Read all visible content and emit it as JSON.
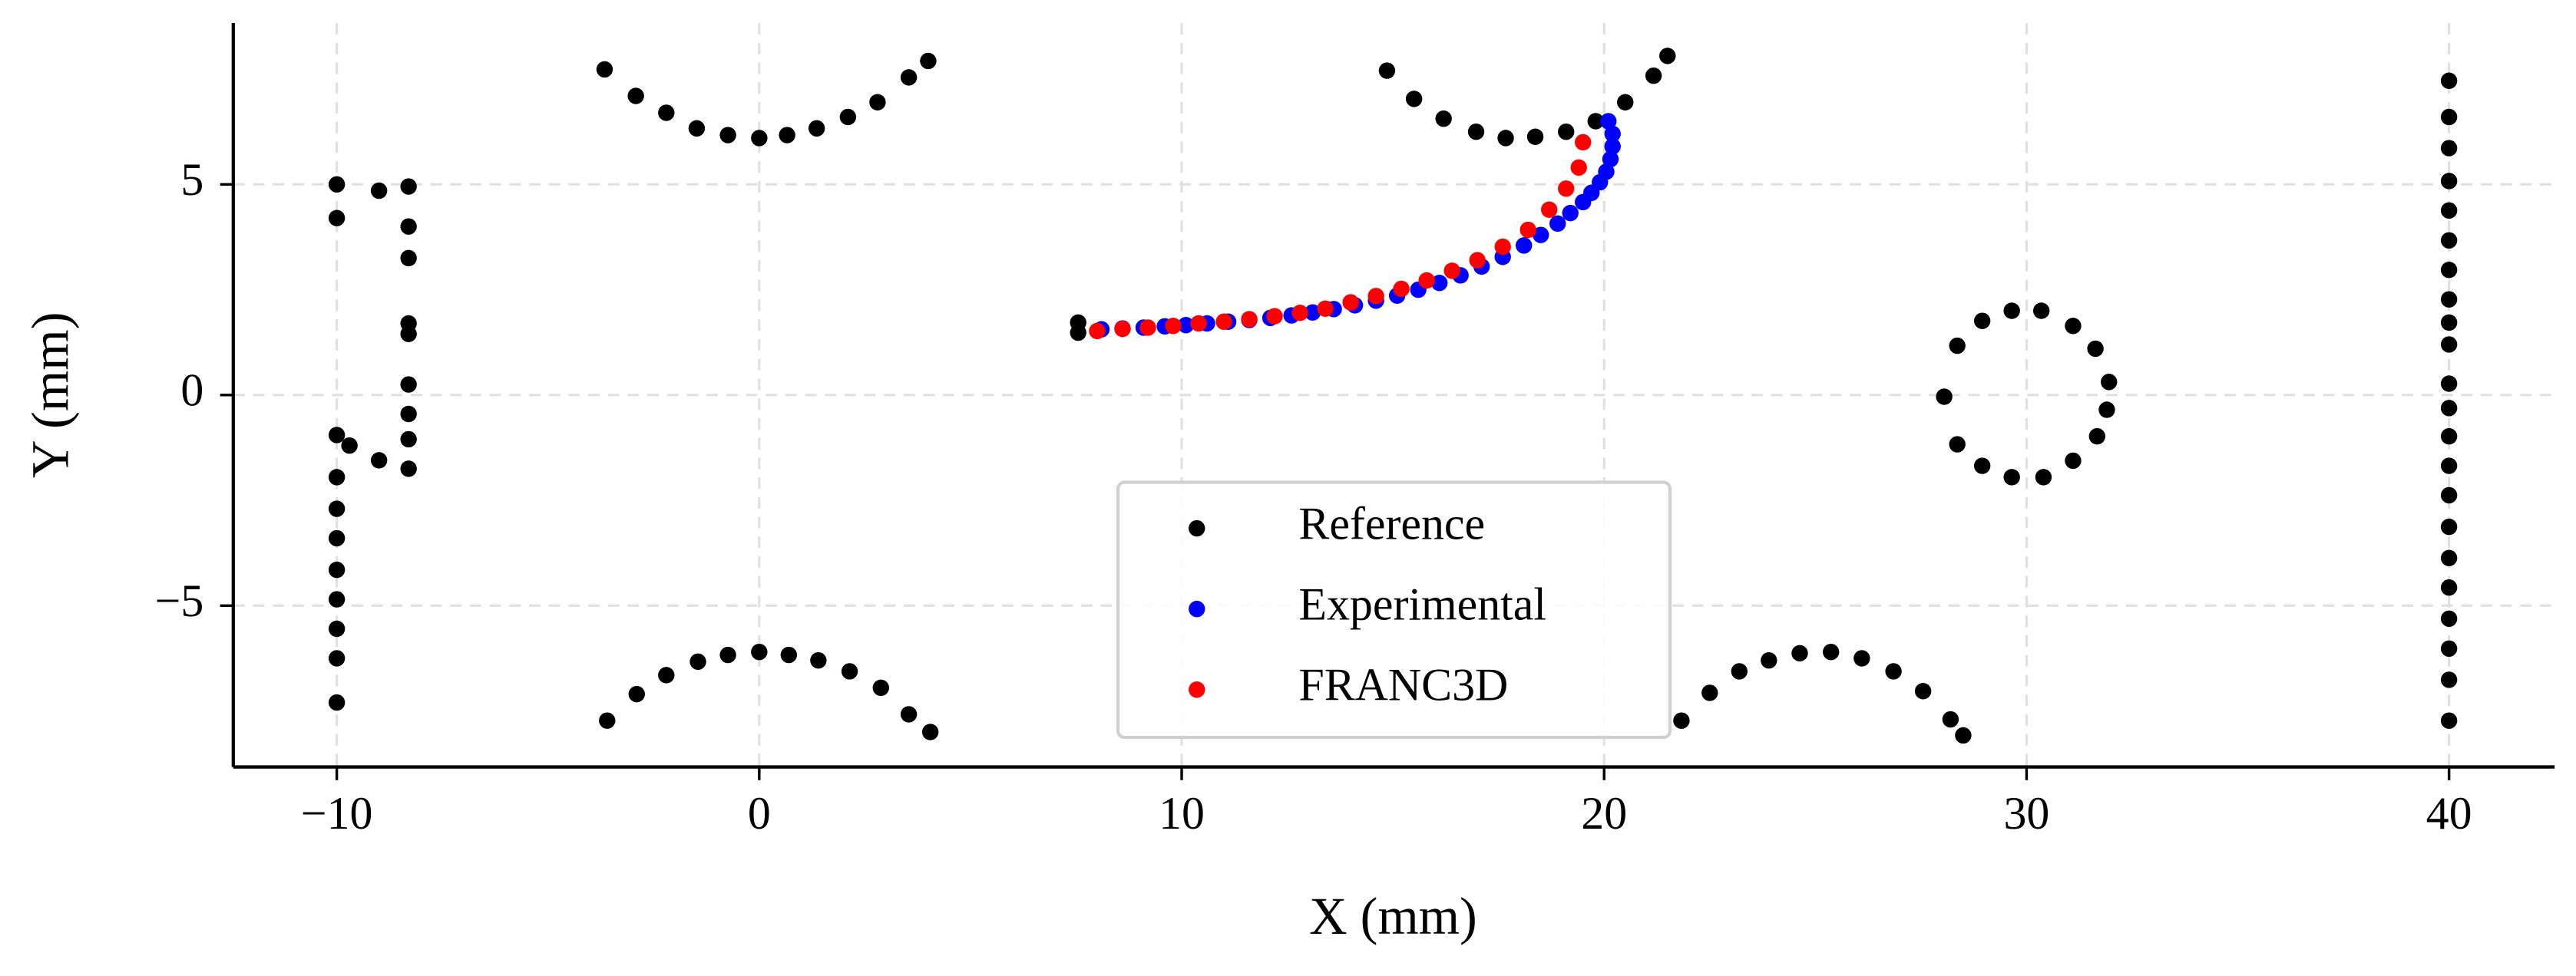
{
  "chart_data": {
    "type": "scatter",
    "xlabel": "X (mm)",
    "ylabel": "Y (mm)",
    "xlim": [
      -12.45,
      42.5
    ],
    "ylim": [
      -8.83,
      8.83
    ],
    "xticks": [
      {
        "value": -10,
        "label": "−10"
      },
      0,
      10,
      20,
      30,
      40
    ],
    "yticks": [
      {
        "value": -5,
        "label": "−5"
      },
      0,
      5
    ],
    "grid": true,
    "legend": "lower center",
    "series": [
      {
        "name": "Reference",
        "color": "#000000",
        "x": [
          -10,
          -10,
          -10,
          -10,
          -10,
          -10,
          -10,
          -10,
          -10,
          -10,
          -10,
          -9.7,
          -9,
          -9,
          -8.3,
          -8.3,
          -8.3,
          -8.3,
          -8.3,
          -8.3,
          -8.3,
          -8.3,
          -8.3,
          -3.66,
          -2.92,
          -2.2,
          -1.48,
          -0.74,
          0,
          0.66,
          1.36,
          2.1,
          2.8,
          3.54,
          4.0,
          -3.6,
          -2.9,
          -2.2,
          -1.45,
          -0.74,
          0,
          0.7,
          1.4,
          2.14,
          2.88,
          3.54,
          4.05,
          14.86,
          15.5,
          16.2,
          16.97,
          17.67,
          18.37,
          19.1,
          19.8,
          20.5,
          21.17,
          21.5,
          21.83,
          22.5,
          23.2,
          23.9,
          24.63,
          25.37,
          26.1,
          26.85,
          27.55,
          28.2,
          28.5,
          7.55,
          7.55,
          28.05,
          28.36,
          28.95,
          29.65,
          30.35,
          31.1,
          31.63,
          31.95,
          31.9,
          31.67,
          31.1,
          30.4,
          29.65,
          28.95,
          28.36,
          40,
          40,
          40,
          40,
          40,
          40,
          40,
          40,
          40,
          40,
          40,
          40,
          40,
          40,
          40,
          40,
          40,
          40,
          40,
          40,
          40,
          40
        ],
        "values": [
          5,
          4.2,
          -0.95,
          -1.95,
          -2.7,
          -3.4,
          -4.15,
          -4.85,
          -5.55,
          -6.25,
          -7.3,
          -1.2,
          4.85,
          -1.55,
          4.95,
          4.0,
          3.25,
          1.7,
          1.45,
          0.25,
          -0.45,
          -1.05,
          -1.75,
          7.73,
          7.1,
          6.7,
          6.33,
          6.17,
          6.1,
          6.17,
          6.33,
          6.6,
          6.95,
          7.54,
          7.93,
          -7.73,
          -7.1,
          -6.65,
          -6.33,
          -6.17,
          -6.1,
          -6.17,
          -6.3,
          -6.56,
          -6.95,
          -7.58,
          -8.0,
          7.7,
          7.03,
          6.56,
          6.25,
          6.1,
          6.13,
          6.25,
          6.5,
          6.95,
          7.58,
          8.05,
          -7.73,
          -7.07,
          -6.56,
          -6.3,
          -6.13,
          -6.1,
          -6.25,
          -6.56,
          -7.03,
          -7.7,
          -8.08,
          1.72,
          1.48,
          -0.04,
          1.17,
          1.76,
          2.0,
          2.0,
          1.64,
          1.1,
          0.31,
          -0.35,
          -0.98,
          -1.56,
          -1.95,
          -1.95,
          -1.68,
          -1.17,
          7.46,
          6.6,
          5.86,
          5.08,
          4.38,
          3.67,
          2.97,
          2.27,
          1.72,
          1.2,
          0.27,
          -0.31,
          -0.98,
          -1.68,
          -2.38,
          -3.13,
          -3.87,
          -4.57,
          -5.31,
          -6.02,
          -6.76,
          -7.73
        ]
      },
      {
        "name": "Experimental",
        "color": "#0000ff",
        "x": [
          8.1,
          8.6,
          9.1,
          9.6,
          10.1,
          10.6,
          11.1,
          11.6,
          12.1,
          12.6,
          13.1,
          13.6,
          14.1,
          14.6,
          15.1,
          15.6,
          16.1,
          16.6,
          17.1,
          17.6,
          18.1,
          18.5,
          18.9,
          19.2,
          19.5,
          19.7,
          19.9,
          20.05,
          20.15,
          20.2,
          20.2,
          20.1
        ],
        "values": [
          1.56,
          1.58,
          1.6,
          1.63,
          1.66,
          1.7,
          1.74,
          1.78,
          1.83,
          1.89,
          1.96,
          2.04,
          2.13,
          2.24,
          2.36,
          2.5,
          2.66,
          2.84,
          3.05,
          3.28,
          3.55,
          3.8,
          4.07,
          4.32,
          4.58,
          4.8,
          5.05,
          5.3,
          5.6,
          5.9,
          6.2,
          6.5
        ]
      },
      {
        "name": "FRANC3D",
        "color": "#ff0000",
        "x": [
          8.0,
          8.6,
          9.2,
          9.8,
          10.4,
          11.0,
          11.6,
          12.2,
          12.8,
          13.4,
          14.0,
          14.6,
          15.2,
          15.8,
          16.4,
          17.0,
          17.6,
          18.2,
          18.7,
          19.1,
          19.4,
          19.5
        ],
        "values": [
          1.52,
          1.57,
          1.6,
          1.64,
          1.7,
          1.74,
          1.8,
          1.87,
          1.95,
          2.05,
          2.2,
          2.35,
          2.52,
          2.72,
          2.95,
          3.2,
          3.52,
          3.92,
          4.4,
          4.9,
          5.4,
          6.0
        ]
      }
    ]
  }
}
